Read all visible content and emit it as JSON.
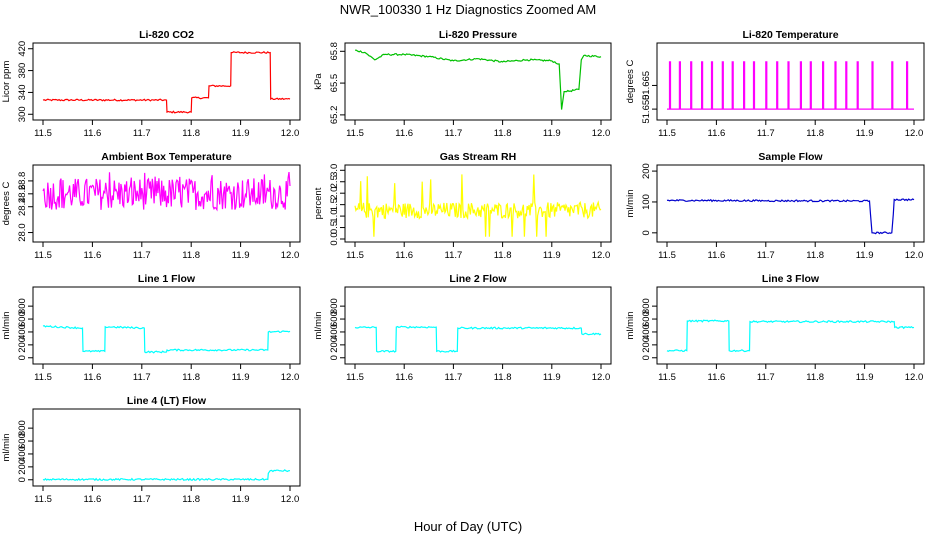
{
  "figure": {
    "title": "NWR_100330  1 Hz Diagnostics Zoomed AM",
    "xlabel": "Hour of Day (UTC)"
  },
  "chart_data": [
    {
      "type": "line",
      "title": "Li-820 CO2",
      "ylabel": "Licor ppm",
      "color": "#ff0000",
      "xlim": [
        11.5,
        12.0
      ],
      "ylim": [
        295,
        425
      ],
      "xticks": [
        "11.5",
        "11.6",
        "11.7",
        "11.8",
        "11.9",
        "12.0"
      ],
      "yticks": [
        300,
        340,
        380,
        420
      ],
      "x": [
        11.5,
        11.75,
        11.751,
        11.8,
        11.801,
        11.835,
        11.836,
        11.88,
        11.881,
        11.96,
        11.961,
        12.0
      ],
      "y": [
        326,
        326,
        304,
        304,
        330,
        330,
        352,
        352,
        413,
        413,
        328,
        328
      ]
    },
    {
      "type": "line",
      "title": "Li-820 Pressure",
      "ylabel": "kPa",
      "color": "#00c000",
      "xlim": [
        11.5,
        12.0
      ],
      "ylim": [
        65.18,
        65.85
      ],
      "xticks": [
        "11.5",
        "11.6",
        "11.7",
        "11.8",
        "11.9",
        "12.0"
      ],
      "yticks": [
        "65.2",
        "65.5",
        "65.8"
      ],
      "x": [
        11.5,
        11.52,
        11.54,
        11.56,
        11.6,
        11.65,
        11.7,
        11.75,
        11.8,
        11.85,
        11.9,
        11.915,
        11.92,
        11.925,
        11.93,
        11.955,
        11.96,
        11.965,
        12.0
      ],
      "y": [
        65.81,
        65.79,
        65.72,
        65.77,
        65.77,
        65.75,
        65.71,
        65.73,
        65.7,
        65.72,
        65.71,
        65.68,
        65.25,
        65.42,
        65.42,
        65.44,
        65.72,
        65.76,
        65.75
      ]
    },
    {
      "type": "line",
      "title": "Li-820 Temperature",
      "ylabel": "degrees C",
      "color": "#ff00ff",
      "xlim": [
        11.5,
        12.0
      ],
      "ylim": [
        51.645,
        51.69
      ],
      "xticks": [
        "11.5",
        "11.6",
        "11.7",
        "11.8",
        "11.9",
        "12.0"
      ],
      "yticks": [
        "51.650",
        "51.665"
      ],
      "note_levels": [
        51.65,
        51.68
      ],
      "x": [
        11.505,
        11.515,
        11.525,
        11.54,
        11.548,
        11.555,
        11.57,
        11.578,
        11.59,
        11.6,
        11.612,
        11.625,
        11.632,
        11.645,
        11.655,
        11.665,
        11.675,
        11.69,
        11.7,
        11.71,
        11.722,
        11.735,
        11.745,
        11.755,
        11.77,
        11.78,
        11.79,
        11.805,
        11.815,
        11.83,
        11.84,
        11.85,
        11.862,
        11.875,
        11.885,
        11.905,
        11.915,
        11.95,
        11.955,
        11.96,
        11.985,
        11.99
      ],
      "y": [
        51.68,
        51.65,
        51.68,
        51.65,
        51.68,
        51.65,
        51.68,
        51.65,
        51.68,
        51.65,
        51.68,
        51.65,
        51.68,
        51.65,
        51.68,
        51.65,
        51.68,
        51.65,
        51.68,
        51.65,
        51.68,
        51.65,
        51.68,
        51.65,
        51.68,
        51.65,
        51.68,
        51.65,
        51.68,
        51.65,
        51.68,
        51.65,
        51.68,
        51.65,
        51.68,
        51.65,
        51.68,
        51.65,
        51.68,
        51.65,
        51.68,
        51.65
      ]
    },
    {
      "type": "line",
      "title": "Ambient Box Temperature",
      "ylabel": "degrees C",
      "color": "#ff00ff",
      "xlim": [
        11.5,
        12.0
      ],
      "ylim": [
        27.9,
        29.0
      ],
      "xticks": [
        "11.5",
        "11.6",
        "11.7",
        "11.8",
        "11.9",
        "12.0"
      ],
      "yticks": [
        "28.0",
        "28.4",
        "28.6",
        "28.8"
      ],
      "noise": {
        "center": 28.6,
        "spread": 0.25,
        "min": 28.0,
        "max": 28.95
      },
      "x": [
        11.5,
        12.0
      ],
      "y": [
        28.6,
        28.6
      ]
    },
    {
      "type": "line",
      "title": "Gas Stream RH",
      "ylabel": "percent",
      "color": "#ffff00",
      "xlim": [
        11.5,
        12.0
      ],
      "ylim": [
        0,
        3.1
      ],
      "xticks": [
        "11.5",
        "11.6",
        "11.7",
        "11.8",
        "11.9",
        "12.0"
      ],
      "yticks": [
        "0.0",
        "0.5",
        "1.0",
        "1.5",
        "2.0",
        "2.5",
        "3.0"
      ],
      "noise": {
        "center": 1.25,
        "spread": 0.35,
        "min": 0.1,
        "max": 3.0
      },
      "x": [
        11.5,
        12.0
      ],
      "y": [
        1.25,
        1.25
      ]
    },
    {
      "type": "line",
      "title": "Sample Flow",
      "ylabel": "ml/min",
      "color": "#0000cc",
      "xlim": [
        11.5,
        12.0
      ],
      "ylim": [
        -20,
        210
      ],
      "xticks": [
        "11.5",
        "11.6",
        "11.7",
        "11.8",
        "11.9",
        "12.0"
      ],
      "yticks": [
        0,
        100,
        200
      ],
      "x": [
        11.5,
        11.7,
        11.91,
        11.912,
        11.915,
        11.955,
        11.958,
        11.96,
        12.0
      ],
      "y": [
        105,
        104,
        103,
        60,
        0,
        0,
        60,
        108,
        107
      ]
    },
    {
      "type": "line",
      "title": "Line 1 Flow",
      "ylabel": "ml/min",
      "color": "#00ffff",
      "xlim": [
        11.5,
        12.0
      ],
      "ylim": [
        -50,
        1050
      ],
      "xticks": [
        "11.5",
        "11.6",
        "11.7",
        "11.8",
        "11.9",
        "12.0"
      ],
      "yticks": [
        0,
        200,
        400,
        600,
        800
      ],
      "x": [
        11.5,
        11.58,
        11.581,
        11.625,
        11.626,
        11.705,
        11.706,
        11.75,
        11.751,
        11.955,
        11.956,
        12.0
      ],
      "y": [
        490,
        460,
        100,
        100,
        480,
        460,
        90,
        90,
        120,
        120,
        400,
        410
      ]
    },
    {
      "type": "line",
      "title": "Line 2 Flow",
      "ylabel": "ml/min",
      "color": "#00ffff",
      "xlim": [
        11.5,
        12.0
      ],
      "ylim": [
        -50,
        1050
      ],
      "xticks": [
        "11.5",
        "11.6",
        "11.7",
        "11.8",
        "11.9",
        "12.0"
      ],
      "yticks": [
        0,
        200,
        400,
        600,
        800
      ],
      "x": [
        11.5,
        11.543,
        11.544,
        11.583,
        11.584,
        11.665,
        11.666,
        11.708,
        11.709,
        11.96,
        11.961,
        12.0
      ],
      "y": [
        470,
        470,
        100,
        100,
        475,
        475,
        100,
        100,
        460,
        460,
        370,
        370
      ]
    },
    {
      "type": "line",
      "title": "Line 3 Flow",
      "ylabel": "ml/min",
      "color": "#00ffff",
      "xlim": [
        11.5,
        12.0
      ],
      "ylim": [
        -50,
        1050
      ],
      "xticks": [
        "11.5",
        "11.6",
        "11.7",
        "11.8",
        "11.9",
        "12.0"
      ],
      "yticks": [
        0,
        200,
        400,
        600,
        800
      ],
      "x": [
        11.5,
        11.54,
        11.541,
        11.625,
        11.626,
        11.667,
        11.668,
        11.96,
        11.961,
        12.0
      ],
      "y": [
        110,
        110,
        570,
        570,
        110,
        110,
        560,
        560,
        470,
        470
      ]
    },
    {
      "type": "line",
      "title": "Line 4 (LT) Flow",
      "ylabel": "ml/min",
      "color": "#00ffff",
      "xlim": [
        11.5,
        12.0
      ],
      "ylim": [
        -50,
        1050
      ],
      "xticks": [
        "11.5",
        "11.6",
        "11.7",
        "11.8",
        "11.9",
        "12.0"
      ],
      "yticks": [
        0,
        200,
        400,
        600,
        800
      ],
      "x": [
        11.5,
        11.955,
        11.956,
        11.96,
        12.0
      ],
      "y": [
        5,
        5,
        100,
        140,
        140
      ]
    }
  ]
}
